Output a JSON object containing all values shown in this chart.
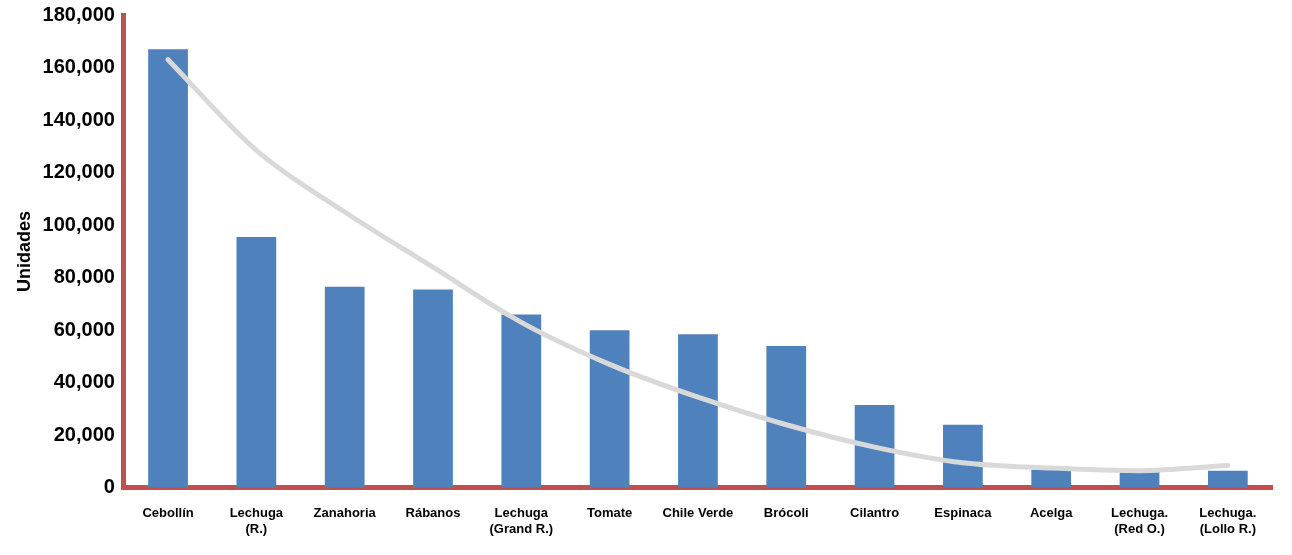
{
  "chart_data": {
    "type": "bar",
    "ylabel": "Unidades",
    "categories": [
      "Cebollín",
      "Lechuga (R.)",
      "Zanahoria",
      "Rábanos",
      "Lechuga (Grand R.)",
      "Tomate",
      "Chile Verde",
      "Brócoli",
      "Cilantro",
      "Espinaca",
      "Acelga",
      "Lechuga. (Red O.)",
      "Lechuga. (Lollo R.)"
    ],
    "series": [
      {
        "color": "#4f81bd",
        "values": [
          167000,
          95500,
          76500,
          75500,
          66000,
          60000,
          58500,
          54000,
          31500,
          24000,
          7000,
          6000,
          6500
        ]
      },
      {
        "type": "line",
        "color": "#d9d9d9",
        "values": [
          163000,
          128500,
          105000,
          84000,
          63000,
          47000,
          34500,
          24000,
          15500,
          9500,
          7500,
          6500,
          8500
        ]
      }
    ],
    "ylim": [
      0,
      180000
    ],
    "yticks": [
      0,
      {
        "value": 20000,
        "label": "20,000"
      },
      {
        "value": 40000,
        "label": "40,000"
      },
      {
        "value": 60000,
        "label": "60,000"
      },
      {
        "value": 80000,
        "label": "80,000"
      },
      {
        "value": 100000,
        "label": "100,000"
      },
      {
        "value": 120000,
        "label": "120,000"
      },
      {
        "value": 140000,
        "label": "140,000"
      },
      {
        "value": 160000,
        "label": "160,000"
      },
      {
        "value": 180000,
        "label": "180,000"
      }
    ],
    "grid": false,
    "legend": false,
    "marker": "none",
    "line_style": "solid"
  }
}
